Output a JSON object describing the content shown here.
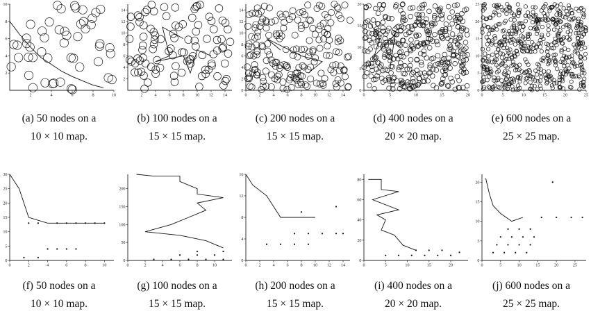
{
  "figure": {
    "row1": [
      {
        "id": "a",
        "nodes": 50,
        "map": 10,
        "xticks": [
          2,
          4,
          6,
          8,
          10
        ],
        "yticks": [
          2,
          4,
          6,
          8,
          10
        ],
        "label": "(a) 50 nodes on a",
        "label2": "10 × 10 map."
      },
      {
        "id": "b",
        "nodes": 100,
        "map": 15,
        "xticks": [
          2,
          4,
          6,
          8,
          10,
          12,
          14
        ],
        "yticks": [
          2,
          4,
          6,
          8,
          10,
          12,
          14
        ],
        "label": "(b) 100 nodes on a",
        "label2": "15 × 15 map."
      },
      {
        "id": "c",
        "nodes": 200,
        "map": 15,
        "xticks": [
          0,
          2,
          4,
          6,
          8,
          10,
          12,
          14
        ],
        "yticks": [
          0,
          2,
          4,
          6,
          8,
          10,
          12,
          14
        ],
        "label": "(c) 200 nodes on a",
        "label2": "15 × 15 map."
      },
      {
        "id": "d",
        "nodes": 400,
        "map": 20,
        "xticks": [
          0,
          5,
          10,
          15,
          20
        ],
        "yticks": [
          0,
          5,
          10,
          15,
          20
        ],
        "label": "(d) 400 nodes on a",
        "label2": "20 × 20 map."
      },
      {
        "id": "e",
        "nodes": 600,
        "map": 25,
        "xticks": [
          0,
          5,
          10,
          15,
          20,
          25
        ],
        "yticks": [
          0,
          5,
          10,
          15,
          20,
          25
        ],
        "label": "(e) 600 nodes on a",
        "label2": "25 × 25 map."
      }
    ],
    "row2": [
      {
        "id": "f",
        "xmax": 11,
        "ymax": 30,
        "xticks": [
          0,
          2,
          4,
          6,
          8,
          10
        ],
        "yticks": [
          0,
          5,
          10,
          15,
          20,
          25,
          30
        ],
        "label": "(f) 50 nodes on a",
        "label2": "10 × 10 map."
      },
      {
        "id": "g",
        "xmax": 12,
        "ymax": 240,
        "xticks": [
          0,
          2,
          4,
          6,
          8,
          10
        ],
        "yticks": [
          0,
          50,
          100,
          150,
          200
        ],
        "label": "(g) 100 nodes on a",
        "label2": "15 × 15 map."
      },
      {
        "id": "h",
        "xmax": 15,
        "ymax": 16,
        "xticks": [
          0,
          2,
          4,
          6,
          8,
          10,
          12,
          14
        ],
        "yticks": [
          0,
          4,
          8,
          12,
          16
        ],
        "label": "(h) 200 nodes on a",
        "label2": "15 × 15 map."
      },
      {
        "id": "i",
        "xmax": 24,
        "ymax": 85,
        "xticks": [
          0,
          5,
          10,
          15,
          20
        ],
        "yticks": [
          0,
          20,
          40,
          60,
          80
        ],
        "label": "(i) 400 nodes on a",
        "label2": "20 × 20 map."
      },
      {
        "id": "j",
        "xmax": 28,
        "ymax": 22,
        "xticks": [
          0,
          5,
          10,
          15,
          20,
          25
        ],
        "yticks": [
          0,
          5,
          10,
          15,
          20
        ],
        "label": "(j) 600 nodes on a",
        "label2": "25 × 25 map."
      }
    ]
  },
  "chart_data": [
    {
      "type": "scatter",
      "panel": "a",
      "nodes": 50,
      "xlim": [
        0,
        10
      ],
      "ylim": [
        0,
        10
      ],
      "path": [
        [
          0,
          8
        ],
        [
          1,
          6.4
        ],
        [
          2,
          5
        ],
        [
          3,
          3.8
        ],
        [
          4,
          3
        ],
        [
          5,
          2.2
        ],
        [
          6,
          1.6
        ],
        [
          7,
          1.1
        ],
        [
          8,
          0.6
        ],
        [
          9,
          0.3
        ]
      ]
    },
    {
      "type": "scatter",
      "panel": "b",
      "nodes": 100,
      "xlim": [
        0,
        15
      ],
      "ylim": [
        0,
        15
      ],
      "path": [
        [
          8,
          9
        ],
        [
          5,
          11
        ],
        [
          6,
          6
        ],
        [
          4,
          5
        ],
        [
          8,
          6
        ],
        [
          9,
          3
        ],
        [
          10,
          7
        ],
        [
          12,
          6
        ]
      ]
    },
    {
      "type": "scatter",
      "panel": "c",
      "nodes": 200,
      "xlim": [
        0,
        15
      ],
      "ylim": [
        0,
        15
      ],
      "path": [
        [
          5,
          7
        ],
        [
          3,
          9
        ],
        [
          8,
          6
        ],
        [
          11,
          5
        ],
        [
          9,
          3
        ]
      ]
    },
    {
      "type": "scatter",
      "panel": "d",
      "nodes": 400,
      "xlim": [
        0,
        20
      ],
      "ylim": [
        0,
        20
      ],
      "path": [
        [
          1,
          16
        ],
        [
          3,
          12
        ],
        [
          2,
          8
        ],
        [
          6,
          13
        ],
        [
          5,
          5
        ]
      ]
    },
    {
      "type": "scatter",
      "panel": "e",
      "nodes": 600,
      "xlim": [
        0,
        25
      ],
      "ylim": [
        0,
        25
      ]
    },
    {
      "type": "line",
      "panel": "f",
      "xlim": [
        0,
        11
      ],
      "ylim": [
        0,
        30
      ],
      "line": [
        [
          0,
          30
        ],
        [
          1,
          25
        ],
        [
          2,
          15
        ],
        [
          4,
          13
        ],
        [
          6,
          13
        ],
        [
          8,
          13
        ],
        [
          10,
          13
        ]
      ],
      "points": [
        [
          2,
          13
        ],
        [
          3,
          13
        ],
        [
          4,
          4
        ],
        [
          5,
          4
        ],
        [
          6,
          4
        ],
        [
          7,
          4
        ],
        [
          1.5,
          1
        ],
        [
          3,
          1
        ],
        [
          5,
          13
        ],
        [
          6,
          13
        ],
        [
          7,
          13
        ],
        [
          8,
          13
        ],
        [
          9,
          13
        ],
        [
          10,
          13
        ]
      ]
    },
    {
      "type": "line",
      "panel": "g",
      "xlim": [
        0,
        12
      ],
      "ylim": [
        0,
        240
      ],
      "line": [
        [
          1,
          240
        ],
        [
          3,
          235
        ],
        [
          6,
          235
        ],
        [
          6,
          220
        ],
        [
          8,
          200
        ],
        [
          8,
          185
        ],
        [
          11,
          175
        ],
        [
          8,
          160
        ],
        [
          9,
          140
        ],
        [
          7,
          120
        ],
        [
          5,
          100
        ],
        [
          2,
          80
        ],
        [
          6,
          70
        ],
        [
          9,
          55
        ],
        [
          11,
          35
        ]
      ],
      "points": [
        [
          3,
          3
        ],
        [
          5,
          3
        ],
        [
          7,
          3
        ],
        [
          9,
          3
        ],
        [
          11,
          3
        ],
        [
          6,
          15
        ],
        [
          8,
          15
        ],
        [
          10,
          15
        ],
        [
          11,
          25
        ],
        [
          8,
          25
        ]
      ]
    },
    {
      "type": "line",
      "panel": "h",
      "xlim": [
        0,
        15
      ],
      "ylim": [
        0,
        16
      ],
      "line": [
        [
          0,
          16
        ],
        [
          1,
          14
        ],
        [
          3,
          12
        ],
        [
          4,
          10
        ],
        [
          5,
          8
        ],
        [
          8,
          8
        ],
        [
          10,
          8
        ]
      ],
      "points": [
        [
          3,
          3
        ],
        [
          5,
          3
        ],
        [
          7,
          3
        ],
        [
          9,
          3
        ],
        [
          7,
          5
        ],
        [
          9,
          5
        ],
        [
          11,
          5
        ],
        [
          13,
          5
        ],
        [
          14,
          5
        ],
        [
          8,
          9
        ],
        [
          13,
          10
        ]
      ]
    },
    {
      "type": "line",
      "panel": "i",
      "xlim": [
        0,
        24
      ],
      "ylim": [
        0,
        85
      ],
      "line": [
        [
          1,
          80
        ],
        [
          4,
          80
        ],
        [
          4,
          70
        ],
        [
          8,
          68
        ],
        [
          2,
          60
        ],
        [
          8,
          50
        ],
        [
          3,
          45
        ],
        [
          5,
          40
        ],
        [
          4,
          30
        ],
        [
          7,
          25
        ],
        [
          9,
          15
        ],
        [
          12,
          10
        ]
      ],
      "points": [
        [
          5,
          5
        ],
        [
          8,
          5
        ],
        [
          11,
          5
        ],
        [
          14,
          5
        ],
        [
          17,
          5
        ],
        [
          20,
          5
        ],
        [
          22,
          8
        ],
        [
          12,
          10
        ],
        [
          15,
          10
        ],
        [
          18,
          10
        ]
      ]
    },
    {
      "type": "line",
      "panel": "j",
      "xlim": [
        0,
        28
      ],
      "ylim": [
        0,
        22
      ],
      "line": [
        [
          1,
          21
        ],
        [
          2,
          17
        ],
        [
          3,
          14
        ],
        [
          5,
          12
        ],
        [
          8,
          10
        ],
        [
          11,
          11
        ]
      ],
      "points": [
        [
          3,
          2
        ],
        [
          6,
          2
        ],
        [
          9,
          2
        ],
        [
          12,
          2
        ],
        [
          4,
          4
        ],
        [
          7,
          4
        ],
        [
          10,
          4
        ],
        [
          13,
          4
        ],
        [
          5,
          6
        ],
        [
          8,
          6
        ],
        [
          11,
          6
        ],
        [
          14,
          6
        ],
        [
          7,
          8
        ],
        [
          10,
          8
        ],
        [
          13,
          8
        ],
        [
          16,
          11
        ],
        [
          20,
          11
        ],
        [
          24,
          11
        ],
        [
          27,
          11
        ],
        [
          19,
          20
        ]
      ]
    }
  ]
}
